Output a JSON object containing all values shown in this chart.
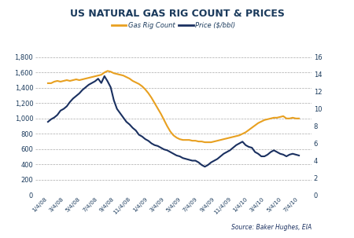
{
  "title": "US NATURAL GAS RIG COUNT & PRICES",
  "title_fontsize": 9.0,
  "title_color": "#1a3a5c",
  "title_fontweight": "bold",
  "source_text": "Source: Baker Hughes, EIA",
  "legend_labels": [
    "Gas Rig Count",
    "Price ($/bbl)"
  ],
  "rig_color": "#e8a020",
  "price_color": "#1a3060",
  "background_color": "#ffffff",
  "grid_color": "#aaaaaa",
  "left_ylim": [
    0,
    1800
  ],
  "right_ylim": [
    0,
    16
  ],
  "left_yticks": [
    0,
    200,
    400,
    600,
    800,
    1000,
    1200,
    1400,
    1600,
    1800
  ],
  "right_yticks": [
    0,
    2,
    4,
    6,
    8,
    10,
    12,
    14,
    16
  ],
  "x_tick_labels": [
    "1/4/08",
    "3/4/08",
    "5/4/08",
    "7/4/08",
    "9/4/08",
    "11/4/08",
    "1/4/09",
    "3/4/09",
    "5/4/09",
    "7/4/09",
    "9/4/09",
    "11/4/09",
    "1/4/10",
    "3/4/10",
    "5/4/10",
    "7/4/10"
  ],
  "rig_count": [
    1460,
    1460,
    1480,
    1490,
    1480,
    1490,
    1500,
    1490,
    1500,
    1510,
    1500,
    1510,
    1520,
    1530,
    1540,
    1550,
    1560,
    1570,
    1600,
    1620,
    1610,
    1590,
    1580,
    1570,
    1560,
    1540,
    1520,
    1490,
    1470,
    1450,
    1420,
    1380,
    1330,
    1270,
    1200,
    1130,
    1060,
    980,
    900,
    830,
    780,
    750,
    730,
    720,
    720,
    720,
    710,
    710,
    700,
    700,
    690,
    690,
    690,
    700,
    710,
    720,
    730,
    740,
    750,
    760,
    770,
    780,
    800,
    820,
    850,
    880,
    910,
    940,
    960,
    980,
    990,
    1000,
    1010,
    1010,
    1020,
    1030,
    1000,
    1000,
    1010,
    1000,
    1000
  ],
  "price": [
    8.5,
    8.8,
    9.0,
    9.3,
    9.8,
    10.0,
    10.3,
    10.8,
    11.2,
    11.5,
    11.8,
    12.2,
    12.5,
    12.8,
    13.0,
    13.2,
    13.5,
    13.0,
    13.8,
    13.2,
    12.5,
    11.0,
    10.0,
    9.5,
    9.0,
    8.5,
    8.2,
    7.8,
    7.5,
    7.0,
    6.8,
    6.5,
    6.3,
    6.0,
    5.8,
    5.7,
    5.5,
    5.3,
    5.2,
    5.0,
    4.8,
    4.6,
    4.5,
    4.3,
    4.2,
    4.1,
    4.0,
    4.0,
    3.8,
    3.5,
    3.3,
    3.5,
    3.8,
    4.0,
    4.2,
    4.5,
    4.8,
    5.0,
    5.2,
    5.5,
    5.8,
    6.0,
    6.2,
    5.8,
    5.6,
    5.5,
    5.0,
    4.8,
    4.5,
    4.5,
    4.7,
    5.0,
    5.2,
    5.0,
    4.8,
    4.7,
    4.5,
    4.7,
    4.8,
    4.7,
    4.6
  ]
}
